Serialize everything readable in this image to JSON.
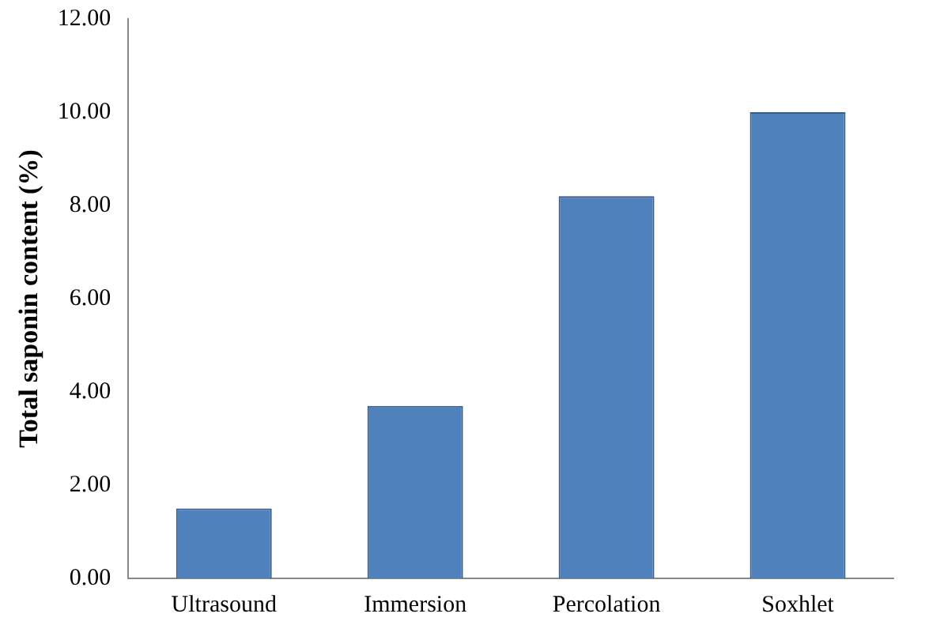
{
  "chart_data": {
    "type": "bar",
    "ylabel": "Total saponin content (%)",
    "categories": [
      "Ultrasound",
      "Immersion",
      "Percolation",
      "Soxhlet"
    ],
    "values": [
      1.5,
      3.7,
      8.2,
      10.0
    ],
    "color": "#4f81bd",
    "ylim": [
      0,
      12
    ],
    "yticks": [
      {
        "value": 0,
        "label": "0.00"
      },
      {
        "value": 2,
        "label": "2.00"
      },
      {
        "value": 4,
        "label": "4.00"
      },
      {
        "value": 6,
        "label": "6.00"
      },
      {
        "value": 8,
        "label": "8.00"
      },
      {
        "value": 10,
        "label": "10.00"
      },
      {
        "value": 12,
        "label": "12.00"
      }
    ],
    "grid": false,
    "legend": false
  }
}
